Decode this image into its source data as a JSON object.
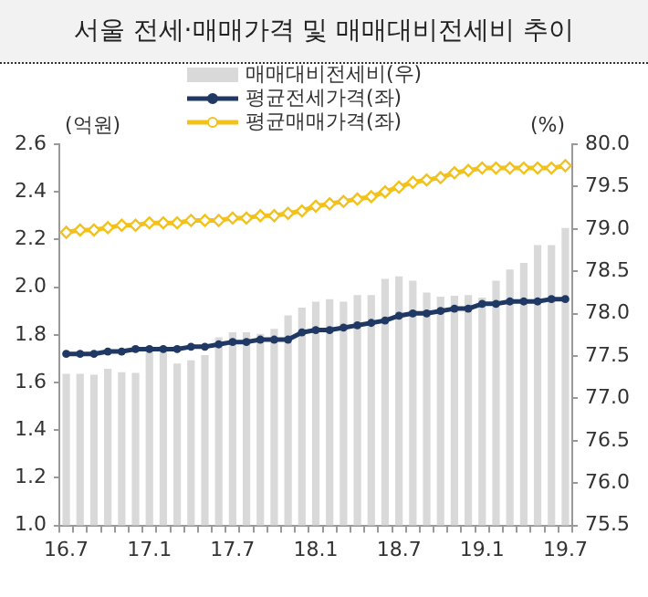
{
  "chart_data": {
    "type": "bar",
    "title": "서울 전세·매매가격 및 매매대비전세비 추이",
    "categories": [
      "16.7",
      null,
      null,
      null,
      null,
      null,
      "17.1",
      null,
      null,
      null,
      null,
      null,
      "17.7",
      null,
      null,
      null,
      null,
      null,
      "18.1",
      null,
      null,
      null,
      null,
      null,
      "18.7",
      null,
      null,
      null,
      null,
      null,
      "19.1",
      null,
      null,
      null,
      null,
      null,
      "19.7"
    ],
    "series": [
      {
        "name": "매매대비전세비(우)",
        "axis": "y2",
        "color": "#d9d9d9",
        "values": [
          77.29,
          77.29,
          77.28,
          77.35,
          77.31,
          77.3,
          77.55,
          77.55,
          77.41,
          77.45,
          77.51,
          77.72,
          77.78,
          77.78,
          77.76,
          77.82,
          77.98,
          78.07,
          78.14,
          78.17,
          78.14,
          78.22,
          78.22,
          78.41,
          78.44,
          78.39,
          78.25,
          78.2,
          78.21,
          78.22,
          78.19,
          78.39,
          78.52,
          78.6,
          78.81,
          78.81,
          79.01
        ]
      },
      {
        "name": "평균전세가격(좌)",
        "type": "line",
        "marker": "circle",
        "color": "#1f3864",
        "values": [
          1.72,
          1.72,
          1.72,
          1.73,
          1.73,
          1.74,
          1.74,
          1.74,
          1.74,
          1.75,
          1.75,
          1.76,
          1.77,
          1.77,
          1.78,
          1.78,
          1.78,
          1.81,
          1.82,
          1.82,
          1.83,
          1.84,
          1.85,
          1.86,
          1.88,
          1.89,
          1.89,
          1.9,
          1.91,
          1.91,
          1.93,
          1.93,
          1.94,
          1.94,
          1.94,
          1.95,
          1.95
        ]
      },
      {
        "name": "평균매매가격(좌)",
        "type": "line",
        "marker": "diamond",
        "color": "#f2c21b",
        "values": [
          2.23,
          2.24,
          2.24,
          2.25,
          2.26,
          2.26,
          2.27,
          2.27,
          2.27,
          2.28,
          2.28,
          2.28,
          2.29,
          2.29,
          2.3,
          2.3,
          2.31,
          2.32,
          2.34,
          2.35,
          2.36,
          2.37,
          2.38,
          2.4,
          2.42,
          2.44,
          2.45,
          2.46,
          2.48,
          2.49,
          2.5,
          2.5,
          2.5,
          2.5,
          2.5,
          2.5,
          2.51
        ]
      }
    ],
    "ylabel": "(억원)",
    "y2label": "(%)",
    "ylim": [
      1.0,
      2.6
    ],
    "yticks": [
      {
        "value": 1.0,
        "label": "1.0"
      },
      {
        "value": 1.2,
        "label": "1.2"
      },
      {
        "value": 1.4,
        "label": "1.4"
      },
      {
        "value": 1.6,
        "label": "1.6"
      },
      {
        "value": 1.8,
        "label": "1.8"
      },
      {
        "value": 2.0,
        "label": "2.0"
      },
      {
        "value": 2.2,
        "label": "2.2"
      },
      {
        "value": 2.4,
        "label": "2.4"
      },
      {
        "value": 2.6,
        "label": "2.6"
      }
    ],
    "y2lim": [
      75.5,
      80.0
    ],
    "y2ticks": [
      {
        "value": 75.5,
        "label": "75.5"
      },
      {
        "value": 76.0,
        "label": "76.0"
      },
      {
        "value": 76.5,
        "label": "76.5"
      },
      {
        "value": 77.0,
        "label": "77.0"
      },
      {
        "value": 77.5,
        "label": "77.5"
      },
      {
        "value": 78.0,
        "label": "78.0"
      },
      {
        "value": 78.5,
        "label": "78.5"
      },
      {
        "value": 79.0,
        "label": "79.0"
      },
      {
        "value": 79.5,
        "label": "79.5"
      },
      {
        "value": 80.0,
        "label": "80.0"
      }
    ],
    "grid": false,
    "legend": "top"
  }
}
